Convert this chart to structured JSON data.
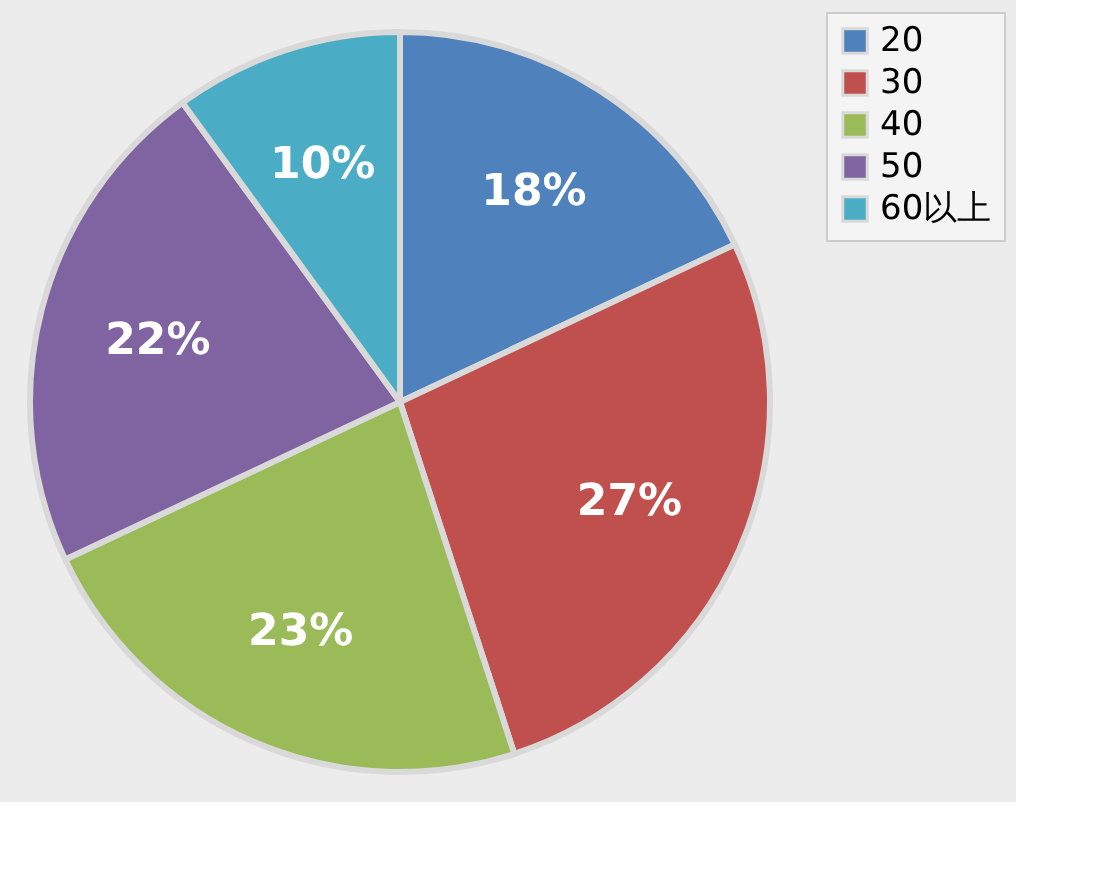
{
  "chart_data": {
    "type": "pie",
    "categories": [
      "20",
      "30",
      "40",
      "50",
      "60以上"
    ],
    "values": [
      18,
      27,
      23,
      22,
      10
    ],
    "value_labels": [
      "18%",
      "27%",
      "23%",
      "22%",
      "10%"
    ],
    "colors": [
      "#4f81bd",
      "#c0504d",
      "#9bbb59",
      "#8064a2",
      "#4bacc6"
    ],
    "legend": "right"
  }
}
